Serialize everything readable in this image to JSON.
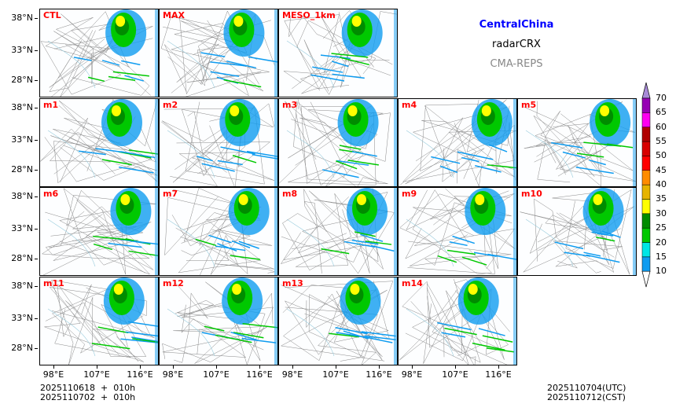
{
  "header": {
    "region": "CentralChina",
    "product": "radarCRX",
    "system": "CMA-REPS"
  },
  "panels": [
    "CTL",
    "MAX",
    "MESO_1km",
    "m1",
    "m2",
    "m3",
    "m4",
    "m5",
    "m6",
    "m7",
    "m8",
    "m9",
    "m10",
    "m11",
    "m12",
    "m13",
    "m14"
  ],
  "lat_ticks": [
    "38°N",
    "33°N",
    "28°N"
  ],
  "lon_ticks": [
    "98°E",
    "107°E",
    "116°E"
  ],
  "footer": {
    "init_utc": "2025110618  +  010h",
    "init_bjt": "2025110702  +  010h",
    "valid_utc": "2025110704(UTC)",
    "valid_cst": "2025110712(CST)"
  },
  "colorbar": {
    "levels": [
      "10",
      "15",
      "20",
      "25",
      "30",
      "35",
      "40",
      "45",
      "50",
      "55",
      "60",
      "65",
      "70"
    ],
    "colors": [
      "#0f9cf0",
      "#00e6e6",
      "#00c800",
      "#008c00",
      "#ffff00",
      "#e6b400",
      "#ff8c00",
      "#ff0000",
      "#d80000",
      "#b00000",
      "#ff00f0",
      "#9600b4"
    ],
    "over": "#a88ad8",
    "under": "#ffffff"
  }
}
